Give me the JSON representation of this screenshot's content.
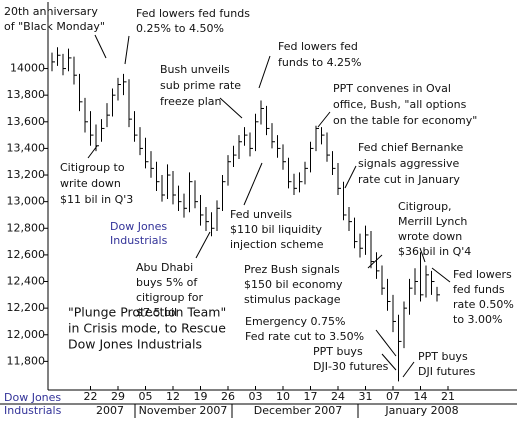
{
  "chart_data": {
    "type": "hlc",
    "color": "#000000",
    "ylim": [
      11600,
      14500
    ],
    "yticks": [
      14000,
      {
        "value": 13800,
        "label": "13,800"
      },
      {
        "value": 13600,
        "label": "13,600"
      },
      {
        "value": 13400,
        "label": "13,400"
      },
      {
        "value": 13200,
        "label": "13,200"
      },
      {
        "value": 13000,
        "label": "13,000"
      },
      {
        "value": 12800,
        "label": "12,800"
      },
      {
        "value": 12600,
        "label": "12,600"
      },
      {
        "value": 12400,
        "label": "12,400"
      },
      {
        "value": 12200,
        "label": "12,200"
      },
      {
        "value": 12000,
        "label": "12,000"
      },
      {
        "value": 11800,
        "label": "11,800"
      }
    ],
    "categories": [
      null,
      null,
      null,
      null,
      null,
      null,
      null,
      "22",
      null,
      null,
      null,
      null,
      "29",
      null,
      null,
      null,
      null,
      "05",
      null,
      null,
      null,
      null,
      "12",
      null,
      null,
      null,
      null,
      "19",
      null,
      null,
      null,
      null,
      "26",
      null,
      null,
      null,
      null,
      "03",
      null,
      null,
      null,
      null,
      "10",
      null,
      null,
      null,
      null,
      "17",
      null,
      null,
      null,
      null,
      "24",
      null,
      null,
      null,
      null,
      "31",
      null,
      null,
      null,
      null,
      "07",
      null,
      null,
      null,
      null,
      "14",
      null,
      null,
      null,
      null,
      "21"
    ],
    "high": [
      14120,
      14160,
      14110,
      14150,
      14090,
      13960,
      13780,
      13680,
      13580,
      13620,
      13740,
      13850,
      13930,
      13960,
      13920,
      13680,
      13560,
      13480,
      13380,
      13300,
      13200,
      13280,
      13230,
      13120,
      13060,
      13220,
      13160,
      13050,
      12960,
      12920,
      13010,
      13200,
      13350,
      13420,
      13500,
      13560,
      13520,
      13660,
      13760,
      13720,
      13590,
      13500,
      13430,
      13330,
      13210,
      13220,
      13300,
      13450,
      13570,
      13560,
      13520,
      13380,
      13290,
      13150,
      12960,
      12880,
      12760,
      12820,
      12780,
      12620,
      12520,
      12420,
      12300,
      12150,
      12250,
      12420,
      12500,
      12620,
      12520,
      12480,
      12360,
      null,
      null
    ],
    "low": [
      13980,
      14020,
      13950,
      13980,
      13880,
      13680,
      13520,
      13420,
      13380,
      13450,
      13560,
      13640,
      13760,
      13800,
      13560,
      13450,
      13350,
      13250,
      13180,
      13080,
      13000,
      13020,
      12980,
      12930,
      12880,
      12920,
      12950,
      12820,
      12780,
      12740,
      12780,
      12930,
      13120,
      13260,
      13320,
      13420,
      13340,
      13380,
      13580,
      13500,
      13400,
      13330,
      13240,
      13100,
      13050,
      13070,
      13130,
      13220,
      13380,
      13430,
      13300,
      13200,
      13050,
      12860,
      12780,
      12650,
      12580,
      12600,
      12500,
      12420,
      12300,
      12180,
      12020,
      11650,
      11900,
      12150,
      12300,
      12250,
      12280,
      12300,
      12250,
      null,
      null
    ],
    "close": [
      14050,
      14100,
      14000,
      14080,
      13950,
      13750,
      13600,
      13500,
      13420,
      13550,
      13650,
      13800,
      13880,
      13900,
      13620,
      13500,
      13400,
      13300,
      13250,
      13150,
      13050,
      13200,
      13050,
      13000,
      12950,
      13150,
      13000,
      12900,
      12850,
      12800,
      12950,
      13150,
      13300,
      13350,
      13450,
      13500,
      13400,
      13600,
      13700,
      13550,
      13450,
      13400,
      13300,
      13150,
      13100,
      13150,
      13250,
      13400,
      13550,
      13500,
      13350,
      13250,
      13100,
      12900,
      12850,
      12700,
      12650,
      12750,
      12550,
      12480,
      12350,
      12250,
      12100,
      11950,
      12200,
      12350,
      12400,
      12300,
      12450,
      12400,
      12300,
      null,
      null
    ],
    "x_periods": [
      "2007",
      "November 2007",
      "December 2007",
      "January 2008"
    ],
    "annotations": [
      {
        "lines": [
          "20th anniversary",
          "of \"Black Monday\""
        ]
      },
      {
        "lines": [
          "Fed lowers fed funds",
          "0.25% to 4.50%"
        ]
      },
      {
        "lines": [
          "Bush unveils",
          "sub prime rate",
          "freeze plan"
        ]
      },
      {
        "lines": [
          "Fed lowers fed",
          "funds to 4.25%"
        ]
      },
      {
        "lines": [
          "PPT convenes in Oval",
          "office, Bush, \"all options",
          "on the table for economy\""
        ]
      },
      {
        "lines": [
          "Citigroup to",
          "write down",
          "$11 bil in Q'3"
        ]
      },
      {
        "lines": [
          "Fed chief Bernanke",
          "signals aggressive",
          "rate cut in January"
        ]
      },
      {
        "lines": [
          "Dow Jones",
          "Industrials"
        ],
        "color": "#333399"
      },
      {
        "lines": [
          "Fed unveils",
          "$110 bil liquidity",
          "injection scheme"
        ]
      },
      {
        "lines": [
          "Citigroup,",
          "Merrill Lynch",
          "wrote down",
          "$36 bil in Q'4"
        ]
      },
      {
        "lines": [
          "Abu Dhabi",
          "buys 5% of",
          "citigroup for",
          "$7.5 bil"
        ]
      },
      {
        "lines": [
          "Prez Bush signals",
          "$150 bil economy",
          "stimulus package"
        ]
      },
      {
        "lines": [
          "Fed lowers",
          "fed funds",
          "rate 0.50%",
          "to 3.00%"
        ]
      },
      {
        "lines": [
          "\"Plunge Protection Team\"",
          "in Crisis mode, to Rescue",
          "Dow Jones Industrials"
        ]
      },
      {
        "lines": [
          "Emergency 0.75%",
          "Fed rate cut to 3.50%"
        ]
      },
      {
        "lines": [
          "PPT buys",
          "DJI-30 futures"
        ]
      },
      {
        "lines": [
          "PPT buys",
          "DJI futures"
        ]
      },
      {
        "lines": [
          "Dow Jones",
          "Industrials"
        ],
        "color": "#333399"
      }
    ]
  }
}
